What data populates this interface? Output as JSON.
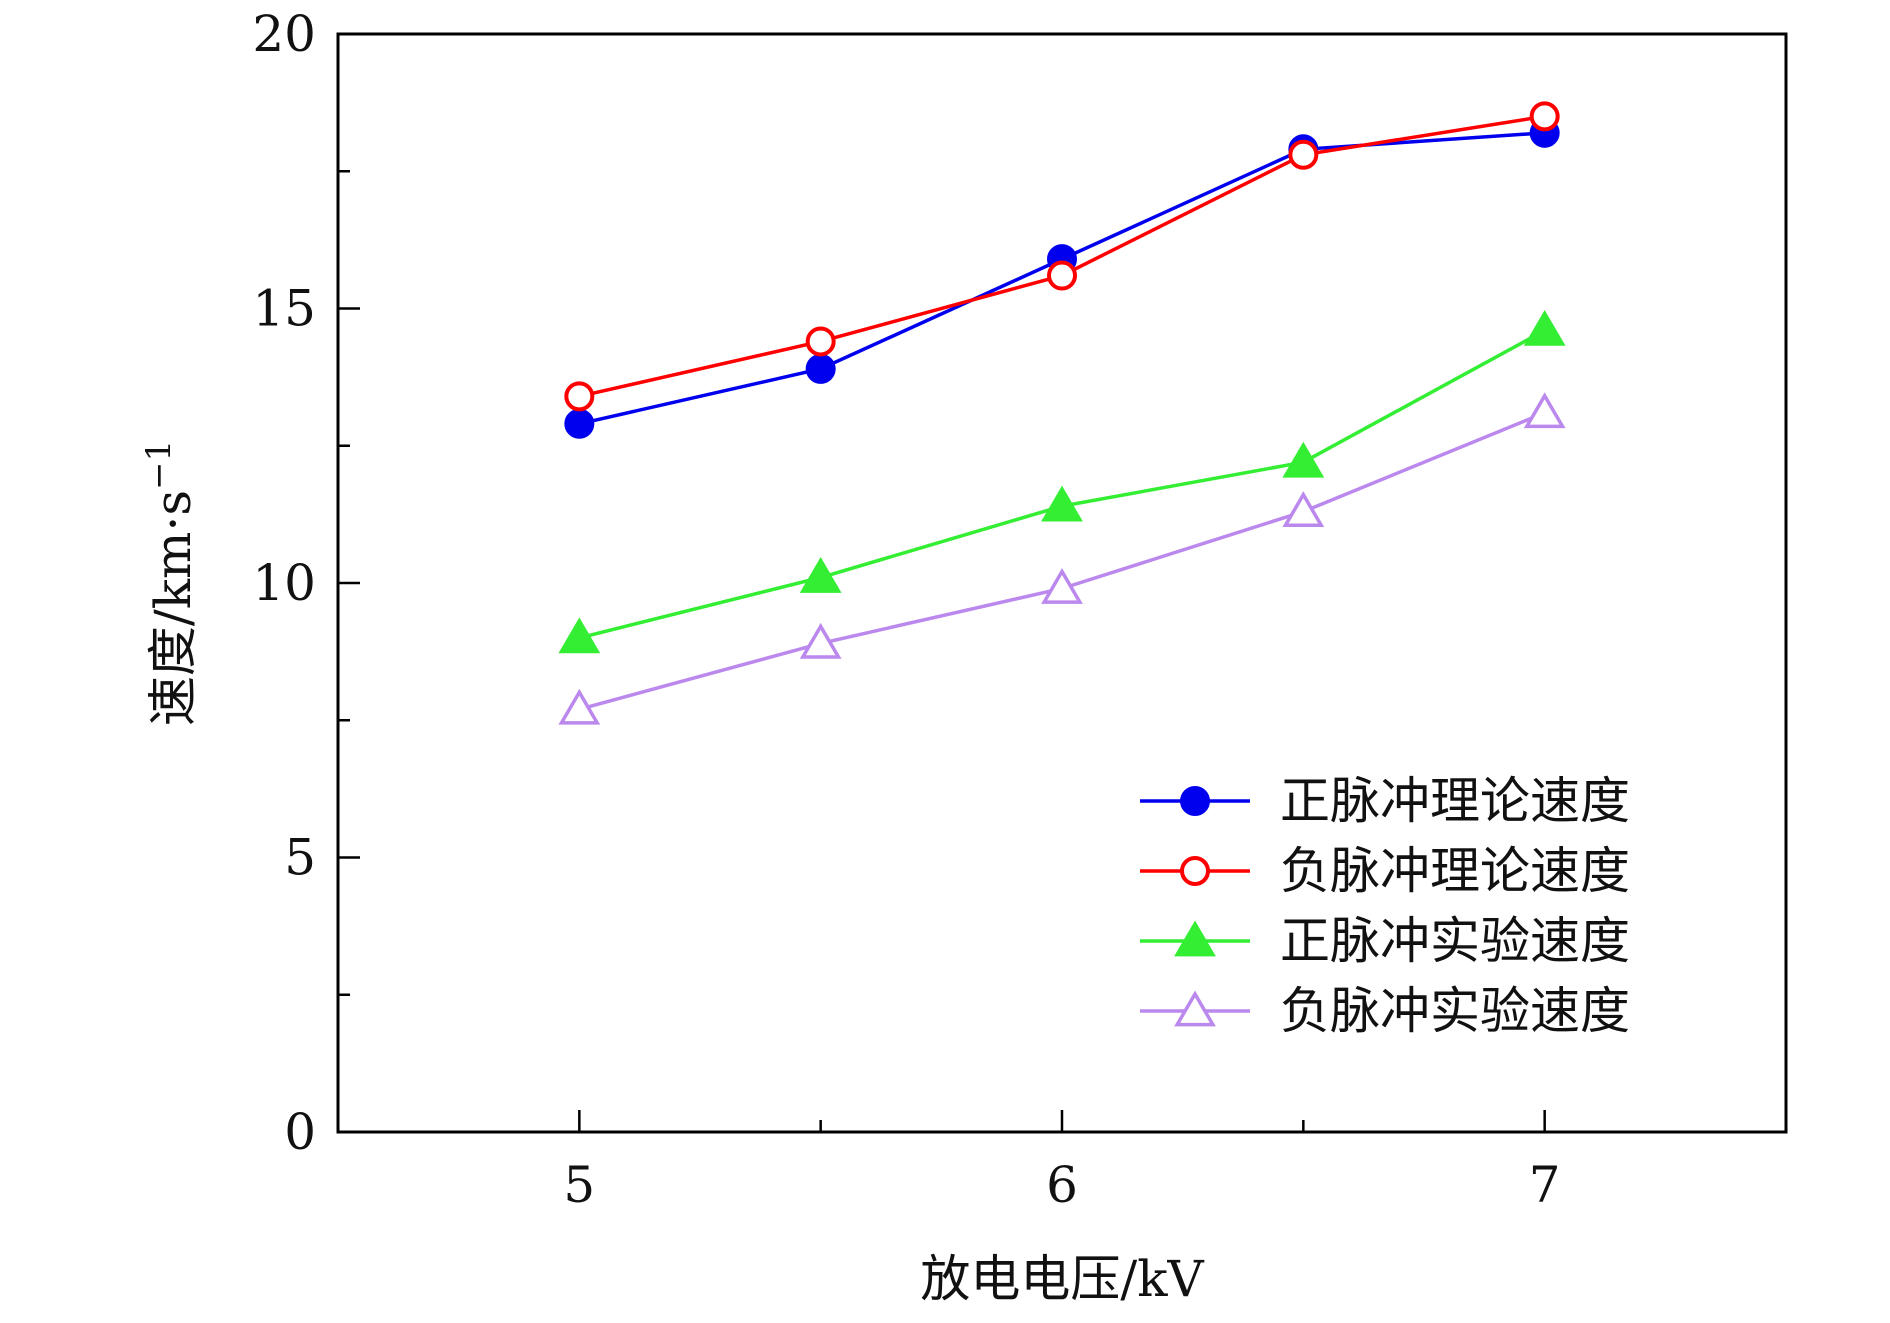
{
  "chart_data": {
    "type": "line",
    "title": "",
    "xlabel": "放电电压/kV",
    "ylabel": "速度/km·s",
    "ylabel_sup": "−1",
    "xlim": [
      4.5,
      7.5
    ],
    "ylim": [
      0,
      20
    ],
    "x_ticks": [
      5,
      6,
      7
    ],
    "x_tick_labels": [
      "5",
      "6",
      "7"
    ],
    "x_minor_ticks": [
      5.5,
      6.5
    ],
    "y_ticks": [
      0,
      5,
      10,
      15,
      20
    ],
    "y_tick_labels": [
      "0",
      "5",
      "10",
      "15",
      "20"
    ],
    "y_minor_ticks": [
      2.5,
      7.5,
      12.5,
      17.5
    ],
    "grid": false,
    "legend_position": "bottom-right",
    "x": [
      5,
      5.5,
      6,
      6.5,
      7
    ],
    "series": [
      {
        "name": "正脉冲理论速度",
        "values": [
          12.9,
          13.9,
          15.9,
          17.9,
          18.2
        ],
        "color": "#0000ee",
        "marker": "circle-filled"
      },
      {
        "name": "负脉冲理论速度",
        "values": [
          13.4,
          14.4,
          15.6,
          17.8,
          18.5
        ],
        "color": "#ff0000",
        "marker": "circle-open"
      },
      {
        "name": "正脉冲实验速度",
        "values": [
          9.0,
          10.1,
          11.4,
          12.2,
          14.6
        ],
        "color": "#33ee33",
        "marker": "triangle-filled"
      },
      {
        "name": "负脉冲实验速度",
        "values": [
          7.7,
          8.9,
          9.9,
          11.3,
          13.1
        ],
        "color": "#bb88ee",
        "marker": "triangle-open"
      }
    ]
  }
}
